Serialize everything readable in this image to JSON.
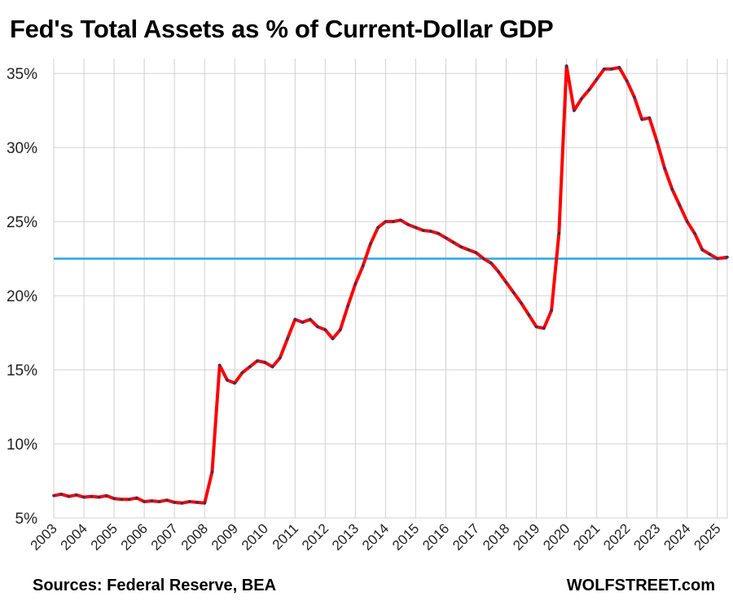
{
  "title": "Fed's Total Assets as % of Current-Dollar GDP",
  "source": "Sources: Federal Reserve, BEA",
  "watermark": "WOLFSTREET.com",
  "colors": {
    "series": "#ff0000",
    "marker": "#1f3a6e",
    "reference": "#29a8e0",
    "grid": "#d0d0d0"
  },
  "chart_data": {
    "type": "line",
    "title": "Fed's Total Assets as % of Current-Dollar GDP",
    "ylim": [
      5,
      36
    ],
    "yticks": [
      5,
      10,
      15,
      20,
      25,
      30,
      35
    ],
    "ytick_labels": [
      "5%",
      "10%",
      "15%",
      "20%",
      "25%",
      "30%",
      "35%"
    ],
    "xlim": [
      2003,
      2025.33
    ],
    "xticks": [
      "2003",
      "2004",
      "2005",
      "2006",
      "2007",
      "2008",
      "2009",
      "2010",
      "2011",
      "2012",
      "2013",
      "2014",
      "2015",
      "2016",
      "2017",
      "2018",
      "2019",
      "2020",
      "2021",
      "2022",
      "2023",
      "2024",
      "2025"
    ],
    "grid": "vertical and horizontal",
    "reference_line": 22.5,
    "series": [
      {
        "x": [
          2003.0,
          2003.25,
          2003.5,
          2003.75,
          2004.0,
          2004.25,
          2004.5,
          2004.75,
          2005.0,
          2005.25,
          2005.5,
          2005.75,
          2006.0,
          2006.25,
          2006.5,
          2006.75,
          2007.0,
          2007.25,
          2007.5,
          2007.75,
          2008.0,
          2008.25,
          2008.5,
          2008.75,
          2009.0,
          2009.25,
          2009.5,
          2009.75,
          2010.0,
          2010.25,
          2010.5,
          2010.75,
          2011.0,
          2011.25,
          2011.5,
          2011.75,
          2012.0,
          2012.25,
          2012.5,
          2012.75,
          2013.0,
          2013.25,
          2013.5,
          2013.75,
          2014.0,
          2014.25,
          2014.5,
          2014.75,
          2015.0,
          2015.25,
          2015.5,
          2015.75,
          2016.0,
          2016.25,
          2016.5,
          2016.75,
          2017.0,
          2017.25,
          2017.5,
          2017.75,
          2018.0,
          2018.25,
          2018.5,
          2018.75,
          2019.0,
          2019.25,
          2019.5,
          2019.75,
          2020.0,
          2020.25,
          2020.5,
          2020.75,
          2021.0,
          2021.25,
          2021.5,
          2021.75,
          2022.0,
          2022.25,
          2022.5,
          2022.75,
          2023.0,
          2023.25,
          2023.5,
          2023.75,
          2024.0,
          2024.25,
          2024.5,
          2024.75,
          2025.0,
          2025.33
        ],
        "y": [
          6.5,
          6.6,
          6.45,
          6.55,
          6.4,
          6.45,
          6.4,
          6.5,
          6.3,
          6.25,
          6.25,
          6.35,
          6.1,
          6.15,
          6.1,
          6.2,
          6.05,
          6.0,
          6.1,
          6.05,
          6.0,
          8.1,
          15.3,
          14.3,
          14.1,
          14.8,
          15.2,
          15.6,
          15.5,
          15.2,
          15.8,
          17.1,
          18.4,
          18.2,
          18.4,
          17.9,
          17.7,
          17.1,
          17.7,
          19.3,
          20.8,
          22.0,
          23.5,
          24.6,
          25.0,
          25.0,
          25.1,
          24.8,
          24.6,
          24.4,
          24.35,
          24.2,
          23.9,
          23.6,
          23.3,
          23.1,
          22.9,
          22.5,
          22.2,
          21.6,
          20.9,
          20.2,
          19.5,
          18.7,
          17.9,
          17.8,
          19.0,
          24.2,
          35.5,
          32.5,
          33.3,
          33.9,
          34.6,
          35.3,
          35.3,
          35.4,
          34.5,
          33.4,
          31.9,
          32.0,
          30.4,
          28.6,
          27.2,
          26.1,
          25.0,
          24.2,
          23.1,
          22.8,
          22.5,
          22.6
        ]
      }
    ]
  }
}
